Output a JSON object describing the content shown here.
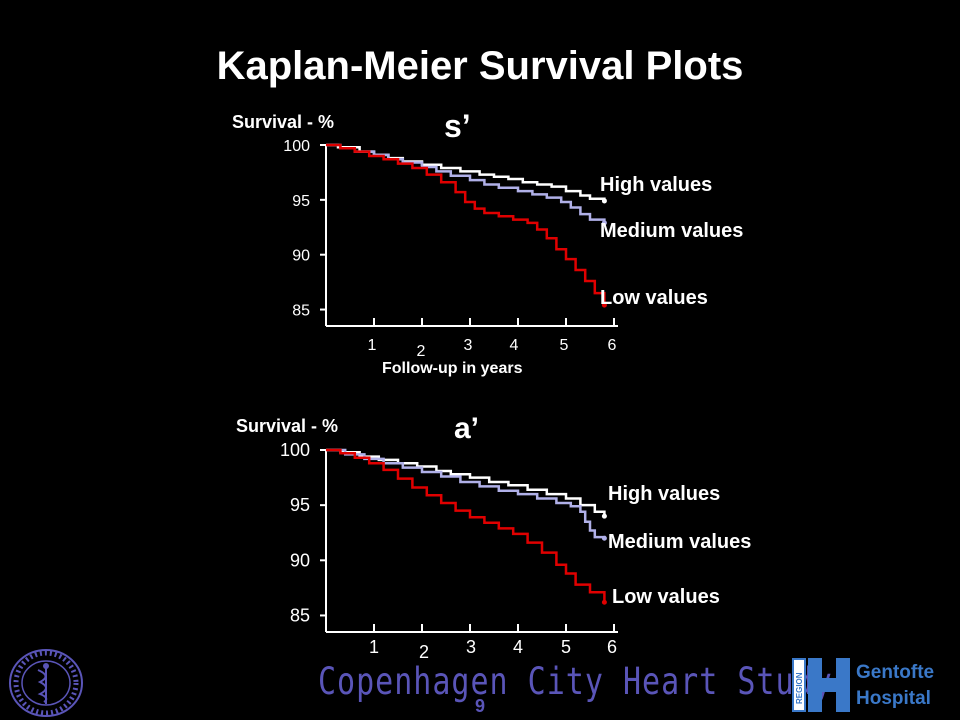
{
  "title": "Kaplan-Meier Survival Plots",
  "chart_data": [
    {
      "type": "line",
      "panel_label": "s’",
      "ylabel": "Survival - %",
      "xlabel": "Follow-up in years",
      "yticks": [
        "100",
        "95",
        "90",
        "85"
      ],
      "xticks": [
        "1",
        "2",
        "3",
        "4",
        "5",
        "6"
      ],
      "ylim": [
        83.5,
        100
      ],
      "xlim": [
        0,
        6
      ],
      "series": [
        {
          "name": "High values",
          "color": "#ffffff",
          "x": [
            0,
            0.25,
            0.7,
            1.0,
            1.3,
            1.6,
            2.0,
            2.4,
            2.8,
            3.2,
            3.5,
            3.8,
            4.1,
            4.4,
            4.7,
            5.0,
            5.3,
            5.5,
            5.8
          ],
          "y": [
            100,
            99.8,
            99.4,
            99.1,
            98.8,
            98.5,
            98.2,
            97.9,
            97.6,
            97.3,
            97.1,
            96.9,
            96.6,
            96.4,
            96.2,
            95.8,
            95.4,
            95.1,
            94.9
          ]
        },
        {
          "name": "Medium values",
          "color": "#b0b0e8",
          "x": [
            0,
            0.3,
            0.6,
            1.0,
            1.3,
            1.6,
            2.0,
            2.3,
            2.6,
            3.0,
            3.3,
            3.6,
            4.0,
            4.3,
            4.6,
            4.9,
            5.1,
            5.3,
            5.5,
            5.8
          ],
          "y": [
            100,
            99.7,
            99.4,
            99.1,
            98.7,
            98.4,
            98.0,
            97.6,
            97.2,
            96.8,
            96.4,
            96.1,
            95.8,
            95.5,
            95.2,
            94.8,
            94.3,
            93.7,
            93.2,
            92.9
          ]
        },
        {
          "name": "Low values",
          "color": "#e00000",
          "x": [
            0,
            0.3,
            0.6,
            0.9,
            1.2,
            1.5,
            1.8,
            2.1,
            2.4,
            2.7,
            2.9,
            3.1,
            3.3,
            3.6,
            3.9,
            4.2,
            4.4,
            4.6,
            4.8,
            5.0,
            5.2,
            5.4,
            5.6,
            5.8
          ],
          "y": [
            100,
            99.7,
            99.4,
            99.0,
            98.7,
            98.3,
            97.9,
            97.3,
            96.6,
            95.7,
            94.8,
            94.2,
            93.8,
            93.5,
            93.2,
            92.9,
            92.3,
            91.5,
            90.5,
            89.6,
            88.6,
            87.6,
            86.5,
            85.4
          ]
        }
      ]
    },
    {
      "type": "line",
      "panel_label": "a’",
      "ylabel": "Survival - %",
      "yticks": [
        "100",
        "95",
        "90",
        "85"
      ],
      "xticks": [
        "1",
        "2",
        "3",
        "4",
        "5",
        "6"
      ],
      "ylim": [
        83.5,
        100
      ],
      "xlim": [
        0,
        6
      ],
      "series": [
        {
          "name": "High values",
          "color": "#ffffff",
          "x": [
            0,
            0.3,
            0.7,
            1.1,
            1.5,
            1.9,
            2.3,
            2.6,
            3.0,
            3.4,
            3.8,
            4.2,
            4.6,
            5.0,
            5.3,
            5.6,
            5.8
          ],
          "y": [
            100,
            99.8,
            99.4,
            99.1,
            98.8,
            98.5,
            98.1,
            97.8,
            97.5,
            97.1,
            96.8,
            96.4,
            96.0,
            95.6,
            95.0,
            94.4,
            94.0
          ]
        },
        {
          "name": "Medium values",
          "color": "#b0b0e8",
          "x": [
            0,
            0.4,
            0.8,
            1.2,
            1.6,
            2.0,
            2.4,
            2.8,
            3.2,
            3.6,
            4.0,
            4.4,
            4.8,
            5.1,
            5.3,
            5.4,
            5.5,
            5.6,
            5.8
          ],
          "y": [
            100,
            99.6,
            99.2,
            98.8,
            98.4,
            98.0,
            97.6,
            97.1,
            96.7,
            96.3,
            96.0,
            95.6,
            95.2,
            94.9,
            94.4,
            93.5,
            92.7,
            92.1,
            92.0
          ]
        },
        {
          "name": "Low values",
          "color": "#e00000",
          "x": [
            0,
            0.3,
            0.6,
            0.9,
            1.2,
            1.5,
            1.8,
            2.1,
            2.4,
            2.7,
            3.0,
            3.3,
            3.6,
            3.9,
            4.2,
            4.5,
            4.8,
            5.0,
            5.2,
            5.5,
            5.8
          ],
          "y": [
            100,
            99.7,
            99.3,
            98.8,
            98.2,
            97.4,
            96.6,
            95.9,
            95.2,
            94.5,
            93.9,
            93.4,
            92.9,
            92.4,
            91.6,
            90.7,
            89.6,
            88.8,
            87.8,
            87.1,
            86.2
          ]
        }
      ]
    }
  ],
  "footer": {
    "study": "Copenhagen City Heart Study",
    "page": "9",
    "logo_line1": "Gentofte",
    "logo_line2": "Hospital",
    "logo_region": "REGION"
  },
  "colors": {
    "background": "#000000",
    "high": "#ffffff",
    "medium": "#b0b0e8",
    "low": "#e00000",
    "footer_text": "#5a55b8",
    "logo_blue": "#3a78c8"
  }
}
